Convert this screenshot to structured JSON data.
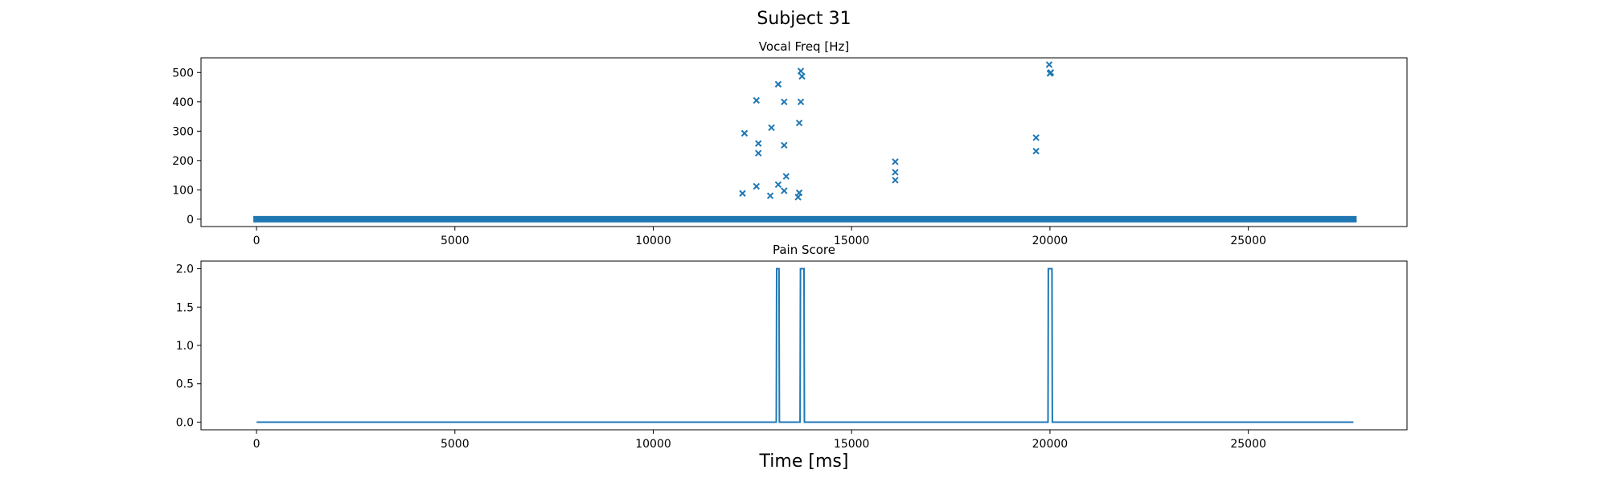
{
  "figure": {
    "suptitle": "Subject 31",
    "xlabel": "Time [ms]"
  },
  "colors": {
    "series": "#1f77b4",
    "axis": "#000000",
    "background": "#ffffff"
  },
  "chart_data": [
    {
      "type": "scatter",
      "title": "Vocal Freq [Hz]",
      "xlabel": "",
      "ylabel": "",
      "xlim": [
        -1400,
        29000
      ],
      "ylim": [
        -25,
        550
      ],
      "xticks": [
        0,
        5000,
        10000,
        15000,
        20000,
        25000
      ],
      "yticks": [
        0,
        100,
        200,
        300,
        400,
        500
      ],
      "grid": false,
      "marker": "x",
      "baseline": {
        "y": 0,
        "x_start": 0,
        "x_end": 27650,
        "note": "dense markers at 0 Hz along the entire recording"
      },
      "series": [
        {
          "points": [
            [
              12250,
              88
            ],
            [
              12300,
              293
            ],
            [
              12600,
              112
            ],
            [
              12600,
              405
            ],
            [
              12650,
              258
            ],
            [
              12650,
              225
            ],
            [
              12950,
              80
            ],
            [
              12980,
              312
            ],
            [
              13150,
              460
            ],
            [
              13150,
              118
            ],
            [
              13300,
              400
            ],
            [
              13300,
              252
            ],
            [
              13300,
              97
            ],
            [
              13350,
              146
            ],
            [
              13650,
              75
            ],
            [
              13680,
              90
            ],
            [
              13680,
              328
            ],
            [
              13720,
              400
            ],
            [
              13720,
              505
            ],
            [
              13750,
              487
            ],
            [
              16100,
              196
            ],
            [
              16100,
              160
            ],
            [
              16100,
              133
            ],
            [
              19650,
              278
            ],
            [
              19650,
              232
            ],
            [
              19980,
              527
            ],
            [
              20000,
              497
            ],
            [
              20020,
              500
            ]
          ]
        }
      ]
    },
    {
      "type": "line",
      "title": "Pain Score",
      "xlabel": "Time [ms]",
      "ylabel": "",
      "xlim": [
        -1400,
        29000
      ],
      "ylim": [
        -0.1,
        2.1
      ],
      "xticks": [
        0,
        5000,
        10000,
        15000,
        20000,
        25000
      ],
      "yticks": [
        0.0,
        0.5,
        1.0,
        1.5,
        2.0
      ],
      "grid": false,
      "series": [
        {
          "points": [
            [
              0,
              0
            ],
            [
              13100,
              0
            ],
            [
              13110,
              2
            ],
            [
              13170,
              2
            ],
            [
              13180,
              0
            ],
            [
              13700,
              0
            ],
            [
              13710,
              2
            ],
            [
              13800,
              2
            ],
            [
              13810,
              0
            ],
            [
              19950,
              0
            ],
            [
              19960,
              2
            ],
            [
              20050,
              2
            ],
            [
              20060,
              0
            ],
            [
              27650,
              0
            ]
          ]
        }
      ]
    }
  ]
}
